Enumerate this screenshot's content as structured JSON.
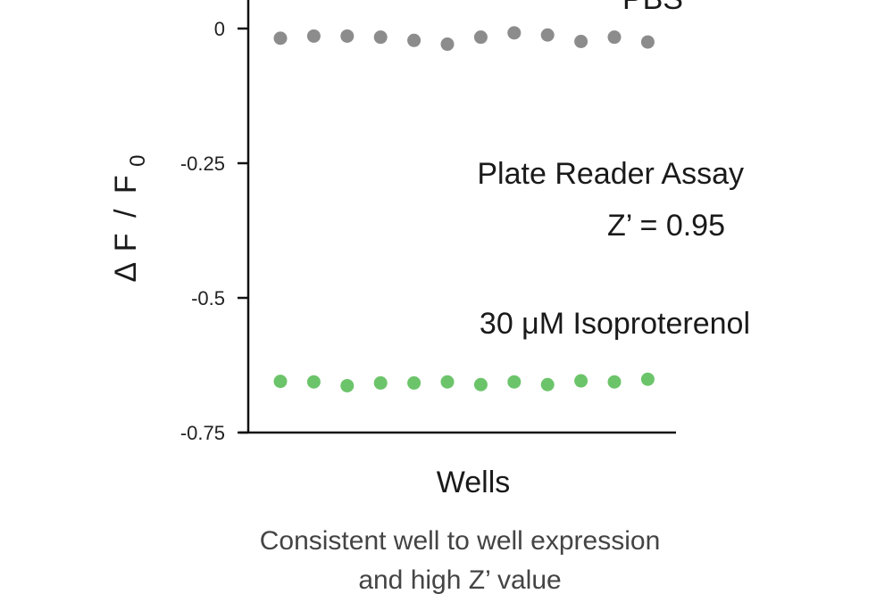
{
  "chart_data": {
    "type": "scatter",
    "title": "",
    "xlabel": "Wells",
    "ylabel_parts": {
      "delta": "Δ",
      "f": "F",
      "slash": "/",
      "f0": "F",
      "subscript": "0"
    },
    "ylim": [
      -0.75,
      0.03
    ],
    "yticks": [
      {
        "value": 0,
        "label": "0"
      },
      {
        "value": -0.25,
        "label": "-0.25"
      },
      {
        "value": -0.5,
        "label": "-0.5"
      },
      {
        "value": -0.75,
        "label": "-0.75"
      }
    ],
    "x": [
      1,
      2,
      3,
      4,
      5,
      6,
      7,
      8,
      9,
      10,
      11,
      12
    ],
    "series": [
      {
        "name": "PBS",
        "color": "#8c8c8c",
        "values": [
          -0.018,
          -0.014,
          -0.014,
          -0.016,
          -0.022,
          -0.029,
          -0.016,
          -0.008,
          -0.012,
          -0.024,
          -0.016,
          -0.025
        ]
      },
      {
        "name": "30 μM Isoproterenol",
        "color": "#6cc46a",
        "values": [
          -0.655,
          -0.656,
          -0.663,
          -0.658,
          -0.658,
          -0.656,
          -0.661,
          -0.656,
          -0.661,
          -0.654,
          -0.656,
          -0.651
        ]
      }
    ],
    "annotations": {
      "assay": "Plate Reader Assay",
      "zprime": "Z’ = 0.95"
    },
    "grid": false,
    "legend": "none"
  },
  "caption": {
    "line1": "Consistent well to well expression",
    "line2": "and high Z’  value"
  }
}
